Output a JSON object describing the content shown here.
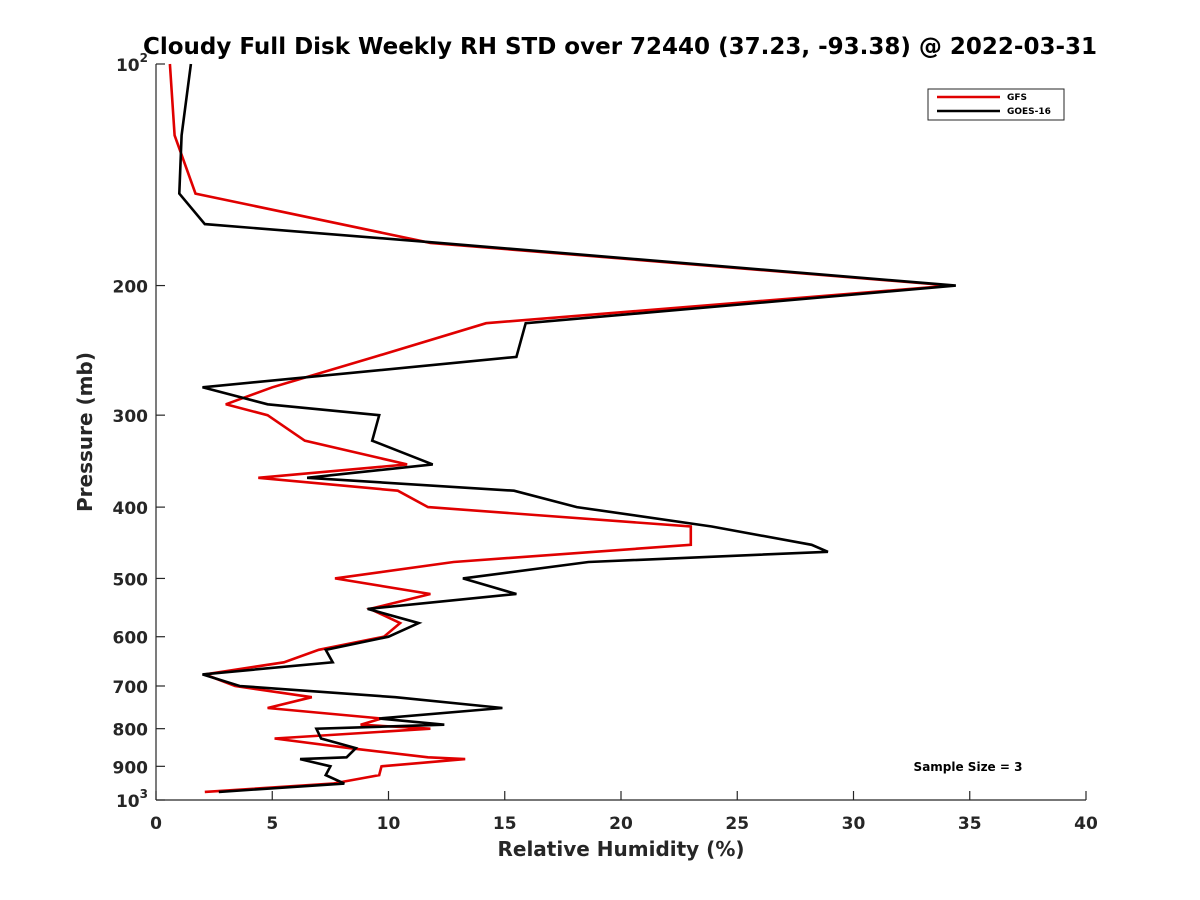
{
  "chart_data": {
    "type": "line",
    "title": "Cloudy Full Disk Weekly RH STD over 72440 (37.23, -93.38) @ 2022-03-31",
    "xlabel": "Relative Humidity (%)",
    "ylabel": "Pressure (mb)",
    "xlim": [
      0,
      40
    ],
    "ylim": [
      100,
      1000
    ],
    "yscale": "log",
    "y_reversed": true,
    "grid": false,
    "legend_position": "top-right",
    "x_ticks": [
      "0",
      "5",
      "10",
      "15",
      "20",
      "25",
      "30",
      "35",
      "40"
    ],
    "y_ticks": [
      {
        "value": 100,
        "base": "10",
        "exp": "2"
      },
      {
        "value": 200,
        "label": "200"
      },
      {
        "value": 300,
        "label": "300"
      },
      {
        "value": 400,
        "label": "400"
      },
      {
        "value": 500,
        "label": "500"
      },
      {
        "value": 600,
        "label": "600"
      },
      {
        "value": 700,
        "label": "700"
      },
      {
        "value": 800,
        "label": "800"
      },
      {
        "value": 900,
        "label": "900"
      },
      {
        "value": 1000,
        "base": "10",
        "exp": "3"
      }
    ],
    "annotation": "Sample Size = 3",
    "series": [
      {
        "name": "GFS",
        "color": "#e00000",
        "points": [
          [
            0.6,
            100
          ],
          [
            0.8,
            125
          ],
          [
            1.7,
            150
          ],
          [
            11.8,
            175
          ],
          [
            34.2,
            200
          ],
          [
            14.2,
            225
          ],
          [
            9.4,
            250
          ],
          [
            5.0,
            275
          ],
          [
            3.0,
            290
          ],
          [
            4.8,
            300
          ],
          [
            6.4,
            325
          ],
          [
            10.8,
            350
          ],
          [
            4.4,
            365
          ],
          [
            10.4,
            380
          ],
          [
            11.7,
            400
          ],
          [
            23.0,
            425
          ],
          [
            23.0,
            450
          ],
          [
            12.8,
            475
          ],
          [
            7.7,
            500
          ],
          [
            11.8,
            525
          ],
          [
            9.2,
            550
          ],
          [
            10.5,
            575
          ],
          [
            9.8,
            600
          ],
          [
            7.0,
            625
          ],
          [
            5.5,
            650
          ],
          [
            2.1,
            675
          ],
          [
            3.4,
            700
          ],
          [
            6.7,
            725
          ],
          [
            4.8,
            750
          ],
          [
            9.7,
            775
          ],
          [
            8.8,
            790
          ],
          [
            11.8,
            800
          ],
          [
            5.1,
            825
          ],
          [
            8.3,
            850
          ],
          [
            11.7,
            875
          ],
          [
            13.3,
            880
          ],
          [
            9.7,
            900
          ],
          [
            9.6,
            925
          ],
          [
            7.6,
            950
          ],
          [
            2.1,
            975
          ]
        ]
      },
      {
        "name": "GOES-16",
        "color": "#000000",
        "points": [
          [
            1.5,
            100
          ],
          [
            1.1,
            125
          ],
          [
            1.0,
            150
          ],
          [
            2.1,
            165
          ],
          [
            12.2,
            175
          ],
          [
            34.4,
            200
          ],
          [
            15.9,
            225
          ],
          [
            15.5,
            250
          ],
          [
            2.0,
            275
          ],
          [
            4.8,
            290
          ],
          [
            9.6,
            300
          ],
          [
            9.3,
            325
          ],
          [
            11.9,
            350
          ],
          [
            6.5,
            365
          ],
          [
            15.4,
            380
          ],
          [
            18.1,
            400
          ],
          [
            23.9,
            425
          ],
          [
            28.2,
            450
          ],
          [
            28.9,
            460
          ],
          [
            18.6,
            475
          ],
          [
            13.2,
            500
          ],
          [
            15.5,
            525
          ],
          [
            9.1,
            550
          ],
          [
            11.3,
            575
          ],
          [
            10.0,
            600
          ],
          [
            7.3,
            625
          ],
          [
            7.6,
            650
          ],
          [
            2.0,
            675
          ],
          [
            3.6,
            700
          ],
          [
            10.3,
            725
          ],
          [
            14.9,
            750
          ],
          [
            9.6,
            775
          ],
          [
            12.4,
            790
          ],
          [
            6.9,
            800
          ],
          [
            7.1,
            825
          ],
          [
            8.6,
            850
          ],
          [
            8.2,
            875
          ],
          [
            6.2,
            880
          ],
          [
            7.5,
            900
          ],
          [
            7.3,
            925
          ],
          [
            8.1,
            950
          ],
          [
            2.7,
            975
          ]
        ]
      }
    ]
  }
}
